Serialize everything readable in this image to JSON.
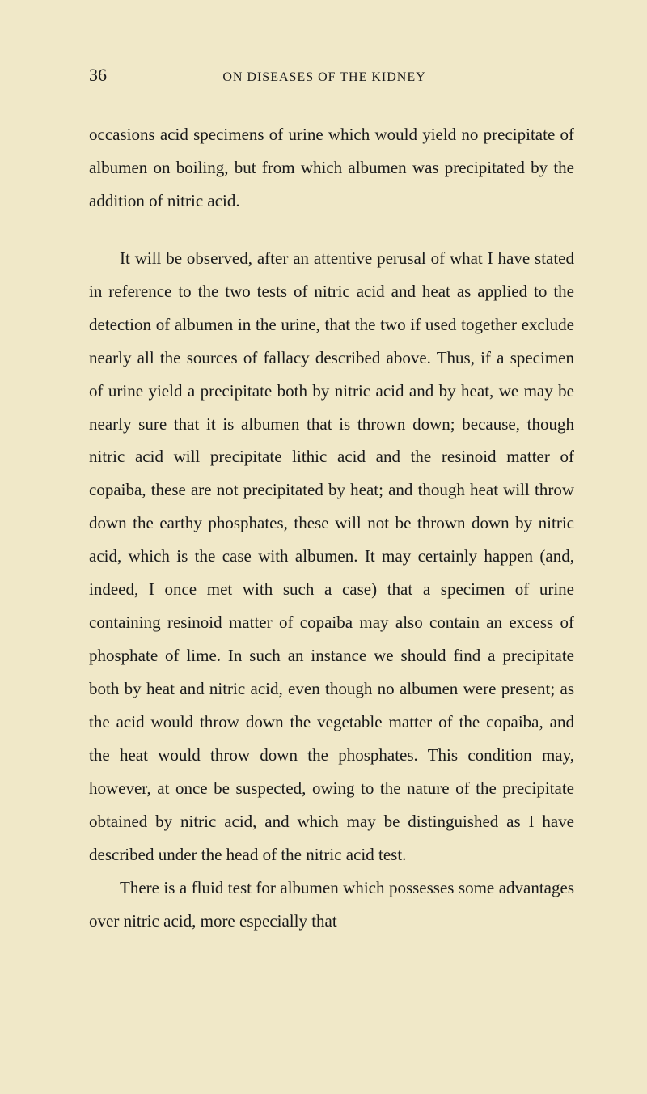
{
  "page": {
    "number": "36",
    "title": "ON DISEASES OF THE KIDNEY",
    "background_color": "#f0e8c8",
    "text_color": "#1a1a1a",
    "font_family": "Georgia, 'Times New Roman', serif",
    "body_font_size": 21,
    "body_line_height": 1.95,
    "header_font_size": 16,
    "page_number_font_size": 22
  },
  "paragraphs": {
    "p1": "occasions acid specimens of urine which would yield no precipitate of albumen on boiling, but from which albumen was precipitated by the addition of nitric acid.",
    "p2": "It will be observed, after an attentive perusal of what I have stated in reference to the two tests of nitric acid and heat as applied to the detection of albumen in the urine, that the two if used together exclude nearly all the sources of fallacy described above. Thus, if a specimen of urine yield a precipitate both by nitric acid and by heat, we may be nearly sure that it is albumen that is thrown down; because, though nitric acid will precipitate lithic acid and the resinoid matter of copaiba, these are not precipitated by heat; and though heat will throw down the earthy phosphates, these will not be thrown down by nitric acid, which is the case with albumen. It may certainly happen (and, indeed, I once met with such a case) that a specimen of urine containing resinoid matter of copaiba may also contain an excess of phosphate of lime. In such an instance we should find a precipitate both by heat and nitric acid, even though no albumen were present; as the acid would throw down the vegetable matter of the copaiba, and the heat would throw down the phosphates. This condition may, however, at once be suspected, owing to the nature of the precipitate obtained by nitric acid, and which may be distinguished as I have described under the head of the nitric acid test.",
    "p3": "There is a fluid test for albumen which possesses some advantages over nitric acid, more especially that"
  }
}
